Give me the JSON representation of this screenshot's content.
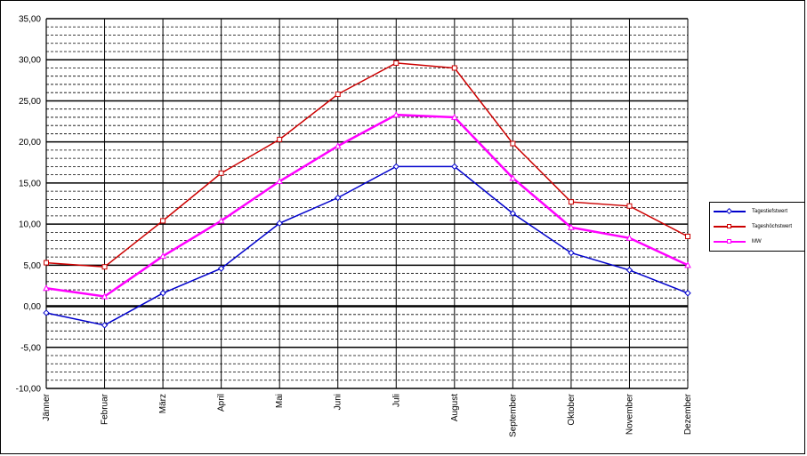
{
  "chart_data": {
    "type": "line",
    "categories": [
      "Jänner",
      "Februar",
      "März",
      "April",
      "Mai",
      "Juni",
      "Juli",
      "August",
      "September",
      "Oktober",
      "November",
      "Dezember"
    ],
    "ylim": [
      -10,
      35
    ],
    "y_ticks": [
      "-10,00",
      "-5,00",
      "0,00",
      "5,00",
      "10,00",
      "15,00",
      "20,00",
      "25,00",
      "30,00",
      "35,00"
    ],
    "grid": true,
    "legend_position": "right",
    "series": [
      {
        "name": "Tagestiefstwert",
        "color": "#0000cc",
        "marker": "diamond",
        "values": [
          -0.8,
          -2.3,
          1.6,
          4.6,
          10.1,
          13.2,
          17.0,
          17.0,
          11.3,
          6.5,
          4.4,
          1.6
        ]
      },
      {
        "name": "Tageshöchstwert",
        "color": "#cc0000",
        "marker": "square",
        "values": [
          5.3,
          4.8,
          10.4,
          16.2,
          20.3,
          25.8,
          29.6,
          29.0,
          19.8,
          12.7,
          12.2,
          8.5
        ]
      },
      {
        "name": "MW",
        "color": "#ff00ff",
        "marker": "triangle",
        "values": [
          2.2,
          1.2,
          6.1,
          10.4,
          15.2,
          19.5,
          23.3,
          23.0,
          15.6,
          9.6,
          8.3,
          5.0
        ]
      }
    ]
  }
}
